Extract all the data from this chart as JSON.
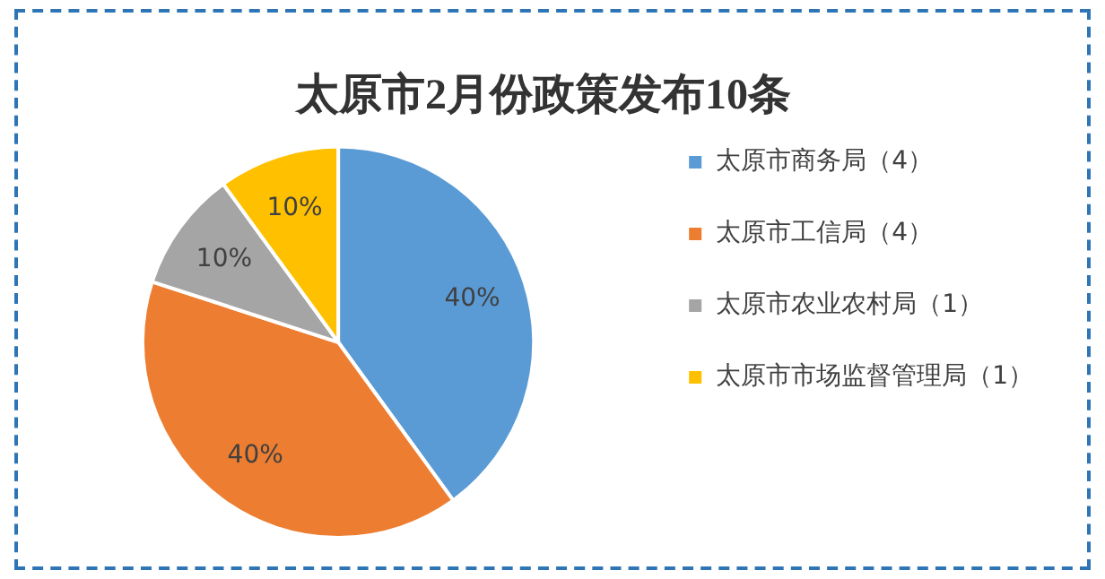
{
  "chart_data": {
    "type": "pie",
    "title": "太原市2月份政策发布10条",
    "categories": [
      "太原市商务局（4）",
      "太原市工信局（4）",
      "太原市农业农村局（1）",
      "太原市市场监督管理局（1）"
    ],
    "values": [
      40,
      40,
      10,
      10
    ],
    "colors": [
      "#5b9bd5",
      "#ed7d31",
      "#a5a5a5",
      "#ffc000"
    ],
    "value_labels": [
      "40%",
      "40%",
      "10%",
      "10%"
    ],
    "legend": "right"
  }
}
